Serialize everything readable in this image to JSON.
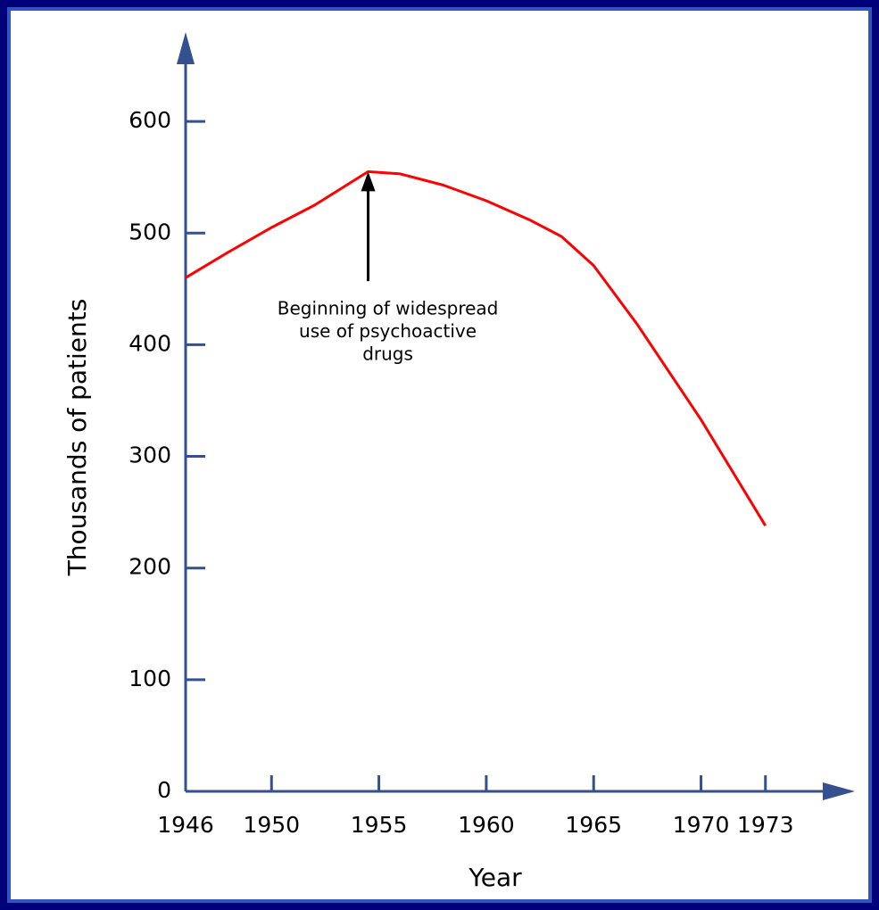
{
  "chart_data": {
    "type": "line",
    "x": [
      1946,
      1948,
      1950,
      1952,
      1954.5,
      1956,
      1958,
      1960,
      1962,
      1963.5,
      1965,
      1967,
      1970,
      1973
    ],
    "values": [
      460,
      483,
      505,
      525,
      555,
      553,
      543,
      529,
      512,
      497,
      471,
      419,
      333,
      238
    ],
    "color": "#ff0000",
    "xlabel": "Year",
    "ylabel": "Thousands of patients",
    "xlim": [
      1946,
      1977
    ],
    "ylim": [
      0,
      680
    ],
    "xticks": [
      1946,
      1950,
      1955,
      1960,
      1965,
      1970,
      1973
    ],
    "yticks": [
      0,
      100,
      200,
      300,
      400,
      500,
      600
    ],
    "annotations": [
      {
        "lines": [
          "Beginning of widespread",
          "use of psychoactive",
          "drugs"
        ],
        "x": 1954.5,
        "y": 555,
        "tail_y": 457
      }
    ],
    "grid": false
  }
}
